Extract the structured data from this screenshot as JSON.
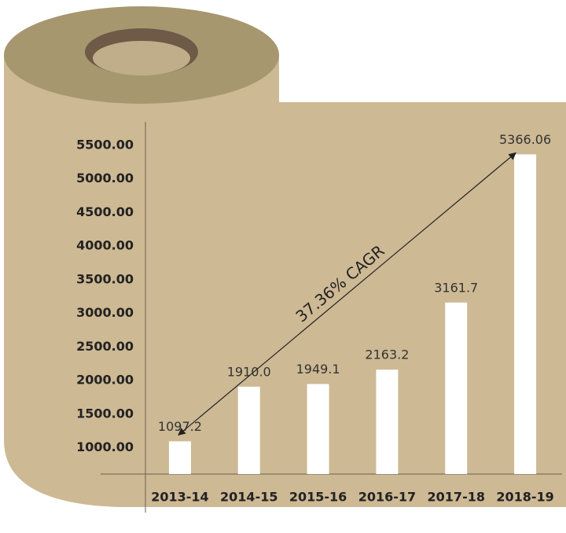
{
  "chart_data": {
    "type": "bar",
    "categories": [
      "2013-14",
      "2014-15",
      "2015-16",
      "2016-17",
      "2017-18",
      "2018-19"
    ],
    "values": [
      1097.2,
      1910.0,
      1949.1,
      2163.2,
      3161.7,
      5366.06
    ],
    "value_labels": [
      "1097.2",
      "1910.0",
      "1949.1",
      "2163.2",
      "3161.7",
      "5366.06"
    ],
    "color": "#ffffff",
    "ylim": [
      610,
      5850
    ],
    "yticks": [
      {
        "value": 1000,
        "label": "1000.00"
      },
      {
        "value": 1500,
        "label": "1500.00"
      },
      {
        "value": 2000,
        "label": "2000.00"
      },
      {
        "value": 2500,
        "label": "2500.00"
      },
      {
        "value": 3000,
        "label": "3000.00"
      },
      {
        "value": 3500,
        "label": "3500.00"
      },
      {
        "value": 4000,
        "label": "4000.00"
      },
      {
        "value": 4500,
        "label": "4500.00"
      },
      {
        "value": 5000,
        "label": "5000.00"
      },
      {
        "value": 5500,
        "label": "5500.00"
      }
    ],
    "grid": false,
    "annotation": "37.36% CAGR"
  }
}
